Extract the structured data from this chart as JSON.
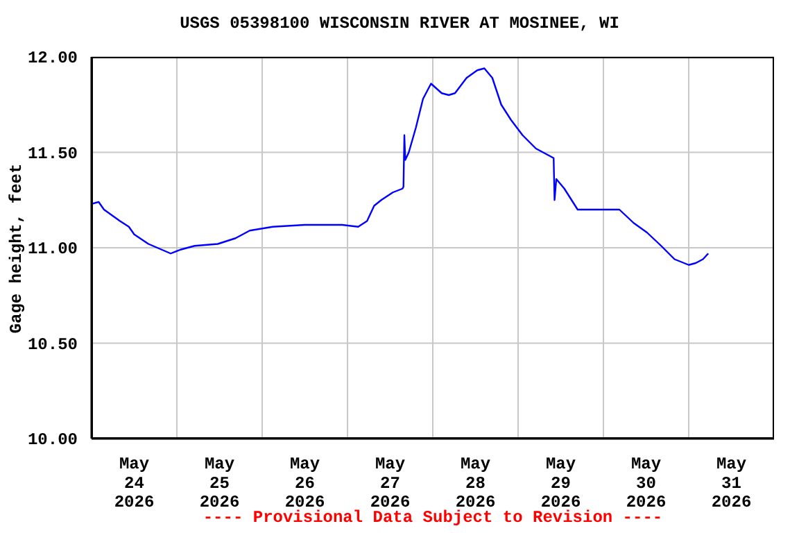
{
  "chart_data": {
    "type": "line",
    "title": "USGS 05398100 WISCONSIN RIVER AT MOSINEE, WI",
    "ylabel": "Gage height, feet",
    "annotations": [
      "---- Provisional Data Subject to Revision ----"
    ],
    "x": [
      "2026-05-24T00:00",
      "2026-05-24T02:00",
      "2026-05-24T03:30",
      "2026-05-24T08:00",
      "2026-05-24T10:30",
      "2026-05-24T12:00",
      "2026-05-24T16:00",
      "2026-05-24T18:30",
      "2026-05-24T22:15",
      "2026-05-25T01:00",
      "2026-05-25T05:00",
      "2026-05-25T11:30",
      "2026-05-25T16:30",
      "2026-05-25T20:30",
      "2026-05-26T03:00",
      "2026-05-26T12:00",
      "2026-05-26T22:30",
      "2026-05-27T03:00",
      "2026-05-27T05:30",
      "2026-05-27T07:30",
      "2026-05-27T09:30",
      "2026-05-27T12:45",
      "2026-05-27T15:30",
      "2026-05-27T15:45",
      "2026-05-27T16:00",
      "2026-05-27T16:15",
      "2026-05-27T17:15",
      "2026-05-27T19:15",
      "2026-05-27T21:15",
      "2026-05-27T23:30",
      "2026-05-28T02:30",
      "2026-05-28T04:30",
      "2026-05-28T06:15",
      "2026-05-28T09:30",
      "2026-05-28T12:30",
      "2026-05-28T14:30",
      "2026-05-28T16:45",
      "2026-05-28T19:15",
      "2026-05-28T22:00",
      "2026-05-29T01:15",
      "2026-05-29T05:00",
      "2026-05-29T10:00",
      "2026-05-29T10:15",
      "2026-05-29T10:45",
      "2026-05-29T13:00",
      "2026-05-29T16:45",
      "2026-05-30T04:30",
      "2026-05-30T08:30",
      "2026-05-30T12:15",
      "2026-05-30T16:15",
      "2026-05-30T20:00",
      "2026-05-31T00:00",
      "2026-05-31T02:00",
      "2026-05-31T04:00",
      "2026-05-31T05:30"
    ],
    "series": [
      {
        "color": "#0000ff",
        "values": [
          11.23,
          11.24,
          11.2,
          11.14,
          11.11,
          11.07,
          11.02,
          11.0,
          10.97,
          10.99,
          11.01,
          11.02,
          11.05,
          11.09,
          11.11,
          11.12,
          11.12,
          11.11,
          11.14,
          11.22,
          11.25,
          11.29,
          11.31,
          11.32,
          11.59,
          11.46,
          11.5,
          11.63,
          11.78,
          11.86,
          11.81,
          11.8,
          11.81,
          11.89,
          11.93,
          11.94,
          11.89,
          11.75,
          11.67,
          11.59,
          11.52,
          11.47,
          11.25,
          11.36,
          11.31,
          11.2,
          11.2,
          11.13,
          11.08,
          11.01,
          10.94,
          10.91,
          10.92,
          10.94,
          10.97
        ]
      }
    ],
    "xlim": [
      "2026-05-24T00:00",
      "2026-06-01T00:00"
    ],
    "xticks": [
      {
        "value": "2026-05-24T12:00",
        "label": "May\n24\n2026"
      },
      {
        "value": "2026-05-25T00:00",
        "label": null
      },
      {
        "value": "2026-05-25T12:00",
        "label": "May\n25\n2026"
      },
      {
        "value": "2026-05-26T00:00",
        "label": null
      },
      {
        "value": "2026-05-26T12:00",
        "label": "May\n26\n2026"
      },
      {
        "value": "2026-05-27T00:00",
        "label": null
      },
      {
        "value": "2026-05-27T12:00",
        "label": "May\n27\n2026"
      },
      {
        "value": "2026-05-28T00:00",
        "label": null
      },
      {
        "value": "2026-05-28T12:00",
        "label": "May\n28\n2026"
      },
      {
        "value": "2026-05-29T00:00",
        "label": null
      },
      {
        "value": "2026-05-29T12:00",
        "label": "May\n29\n2026"
      },
      {
        "value": "2026-05-30T00:00",
        "label": null
      },
      {
        "value": "2026-05-30T12:00",
        "label": "May\n30\n2026"
      },
      {
        "value": "2026-05-31T00:00",
        "label": null
      },
      {
        "value": "2026-05-31T12:00",
        "label": "May\n31\n2026"
      }
    ],
    "ylim": [
      10,
      12
    ],
    "yticks": [
      {
        "value": 10,
        "label": "10.00"
      },
      {
        "value": 10.5,
        "label": "10.50"
      },
      {
        "value": 11,
        "label": "11.00"
      },
      {
        "value": 11.5,
        "label": "11.50"
      },
      {
        "value": 12,
        "label": "12.00"
      }
    ],
    "grid": true,
    "legend": false,
    "marker": "none",
    "line_style": "solid"
  }
}
